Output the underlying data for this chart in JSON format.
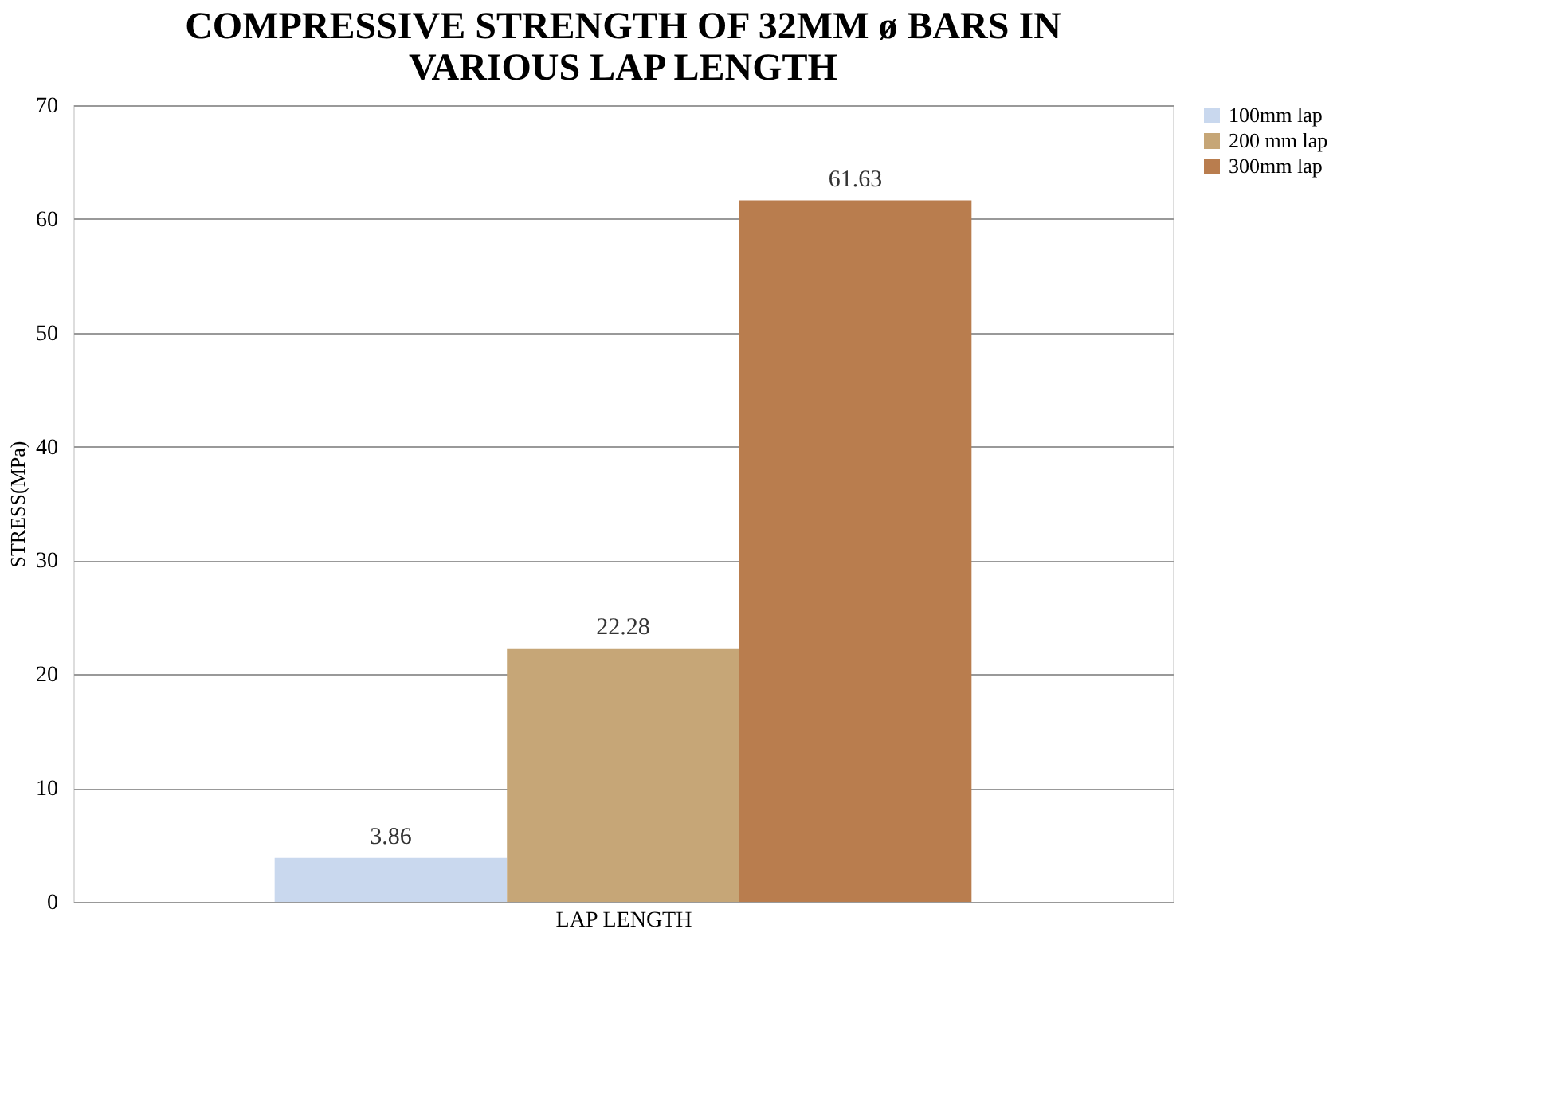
{
  "chart_data": {
    "type": "bar",
    "title": "COMPRESSIVE STRENGTH OF 32MM ø BARS IN VARIOUS LAP LENGTH",
    "xlabel": "LAP LENGTH",
    "ylabel": "STRESS(MPa)",
    "categories": [
      null
    ],
    "series": [
      {
        "name": "100mm lap",
        "color": "#c9d8ee",
        "values": [
          3.86
        ]
      },
      {
        "name": "200 mm lap",
        "color": "#c6a677",
        "values": [
          22.28
        ]
      },
      {
        "name": "300mm lap",
        "color": "#b97d4e",
        "values": [
          61.63
        ]
      }
    ],
    "ylim": [
      0,
      70
    ],
    "yticks": [
      0,
      10,
      20,
      30,
      40,
      50,
      60,
      70
    ],
    "grid": "y",
    "legend": "right",
    "data_labels": true
  }
}
